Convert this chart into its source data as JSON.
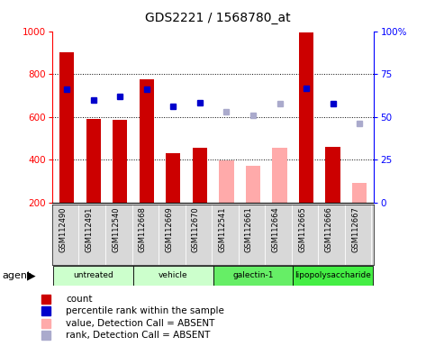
{
  "title": "GDS2221 / 1568780_at",
  "samples": [
    "GSM112490",
    "GSM112491",
    "GSM112540",
    "GSM112668",
    "GSM112669",
    "GSM112670",
    "GSM112541",
    "GSM112661",
    "GSM112664",
    "GSM112665",
    "GSM112666",
    "GSM112667"
  ],
  "bar_values": [
    900,
    590,
    585,
    775,
    430,
    455,
    395,
    370,
    455,
    995,
    460,
    290
  ],
  "bar_absent": [
    false,
    false,
    false,
    false,
    false,
    false,
    true,
    true,
    true,
    false,
    false,
    true
  ],
  "rank_values": [
    730,
    680,
    695,
    730,
    650,
    665,
    625,
    608,
    660,
    735,
    660,
    570
  ],
  "rank_absent": [
    false,
    false,
    false,
    false,
    false,
    false,
    true,
    true,
    true,
    false,
    false,
    true
  ],
  "bar_color_present": "#cc0000",
  "bar_color_absent": "#ffaaaa",
  "rank_color_present": "#0000cc",
  "rank_color_absent": "#aaaacc",
  "ylim_left": [
    200,
    1000
  ],
  "ylim_right": [
    0,
    100
  ],
  "yticks_left": [
    200,
    400,
    600,
    800,
    1000
  ],
  "yticks_right": [
    0,
    25,
    50,
    75,
    100
  ],
  "grid_values": [
    400,
    600,
    800
  ],
  "bg_color": "#ffffff",
  "groups_def": [
    {
      "label": "untreated",
      "start": 0,
      "end": 2,
      "color": "#ccffcc"
    },
    {
      "label": "vehicle",
      "start": 3,
      "end": 5,
      "color": "#ccffcc"
    },
    {
      "label": "galectin-1",
      "start": 6,
      "end": 8,
      "color": "#66ee66"
    },
    {
      "label": "lipopolysaccharide",
      "start": 9,
      "end": 11,
      "color": "#44ee44"
    }
  ],
  "legend_items": [
    {
      "color": "#cc0000",
      "label": "count"
    },
    {
      "color": "#0000cc",
      "label": "percentile rank within the sample"
    },
    {
      "color": "#ffaaaa",
      "label": "value, Detection Call = ABSENT"
    },
    {
      "color": "#aaaacc",
      "label": "rank, Detection Call = ABSENT"
    }
  ],
  "agent_label": "agent"
}
